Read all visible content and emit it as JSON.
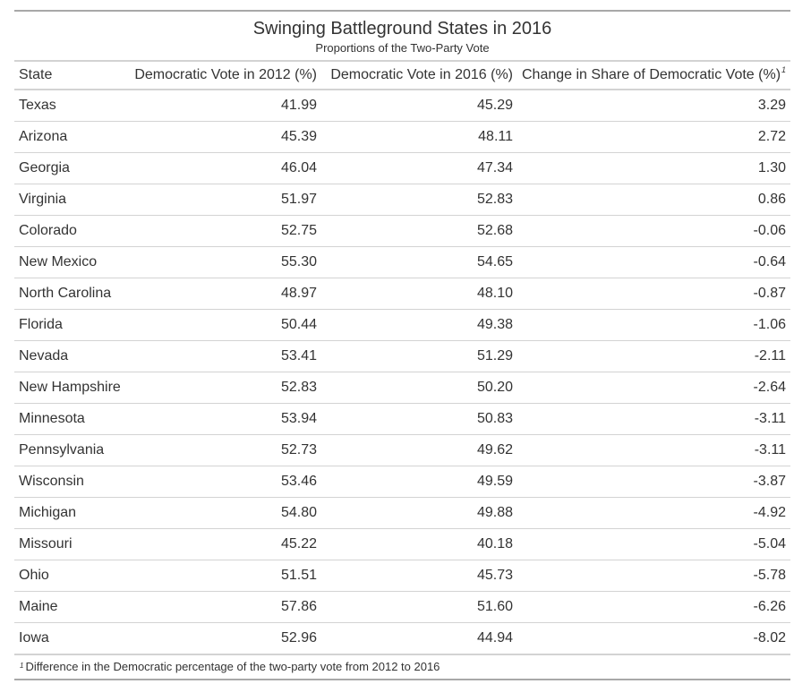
{
  "title": "Swinging Battleground States in 2016",
  "subtitle": "Proportions of the Two-Party Vote",
  "columns": {
    "state": "State",
    "dem_2012": "Democratic Vote in 2012 (%)",
    "dem_2016": "Democratic Vote in 2016 (%)",
    "change": "Change in Share of Democratic Vote (%)",
    "change_marker": "1"
  },
  "rows": [
    {
      "state": "Texas",
      "dem_2012": "41.99",
      "dem_2016": "45.29",
      "change": "3.29"
    },
    {
      "state": "Arizona",
      "dem_2012": "45.39",
      "dem_2016": "48.11",
      "change": "2.72"
    },
    {
      "state": "Georgia",
      "dem_2012": "46.04",
      "dem_2016": "47.34",
      "change": "1.30"
    },
    {
      "state": "Virginia",
      "dem_2012": "51.97",
      "dem_2016": "52.83",
      "change": "0.86"
    },
    {
      "state": "Colorado",
      "dem_2012": "52.75",
      "dem_2016": "52.68",
      "change": "-0.06"
    },
    {
      "state": "New Mexico",
      "dem_2012": "55.30",
      "dem_2016": "54.65",
      "change": "-0.64"
    },
    {
      "state": "North Carolina",
      "dem_2012": "48.97",
      "dem_2016": "48.10",
      "change": "-0.87"
    },
    {
      "state": "Florida",
      "dem_2012": "50.44",
      "dem_2016": "49.38",
      "change": "-1.06"
    },
    {
      "state": "Nevada",
      "dem_2012": "53.41",
      "dem_2016": "51.29",
      "change": "-2.11"
    },
    {
      "state": "New Hampshire",
      "dem_2012": "52.83",
      "dem_2016": "50.20",
      "change": "-2.64"
    },
    {
      "state": "Minnesota",
      "dem_2012": "53.94",
      "dem_2016": "50.83",
      "change": "-3.11"
    },
    {
      "state": "Pennsylvania",
      "dem_2012": "52.73",
      "dem_2016": "49.62",
      "change": "-3.11"
    },
    {
      "state": "Wisconsin",
      "dem_2012": "53.46",
      "dem_2016": "49.59",
      "change": "-3.87"
    },
    {
      "state": "Michigan",
      "dem_2012": "54.80",
      "dem_2016": "49.88",
      "change": "-4.92"
    },
    {
      "state": "Missouri",
      "dem_2012": "45.22",
      "dem_2016": "40.18",
      "change": "-5.04"
    },
    {
      "state": "Ohio",
      "dem_2012": "51.51",
      "dem_2016": "45.73",
      "change": "-5.78"
    },
    {
      "state": "Maine",
      "dem_2012": "57.86",
      "dem_2016": "51.60",
      "change": "-6.26"
    },
    {
      "state": "Iowa",
      "dem_2012": "52.96",
      "dem_2016": "44.94",
      "change": "-8.02"
    }
  ],
  "footnote": {
    "marker": "1",
    "text": "Difference in the Democratic percentage of the two-party vote from 2012 to 2016"
  }
}
